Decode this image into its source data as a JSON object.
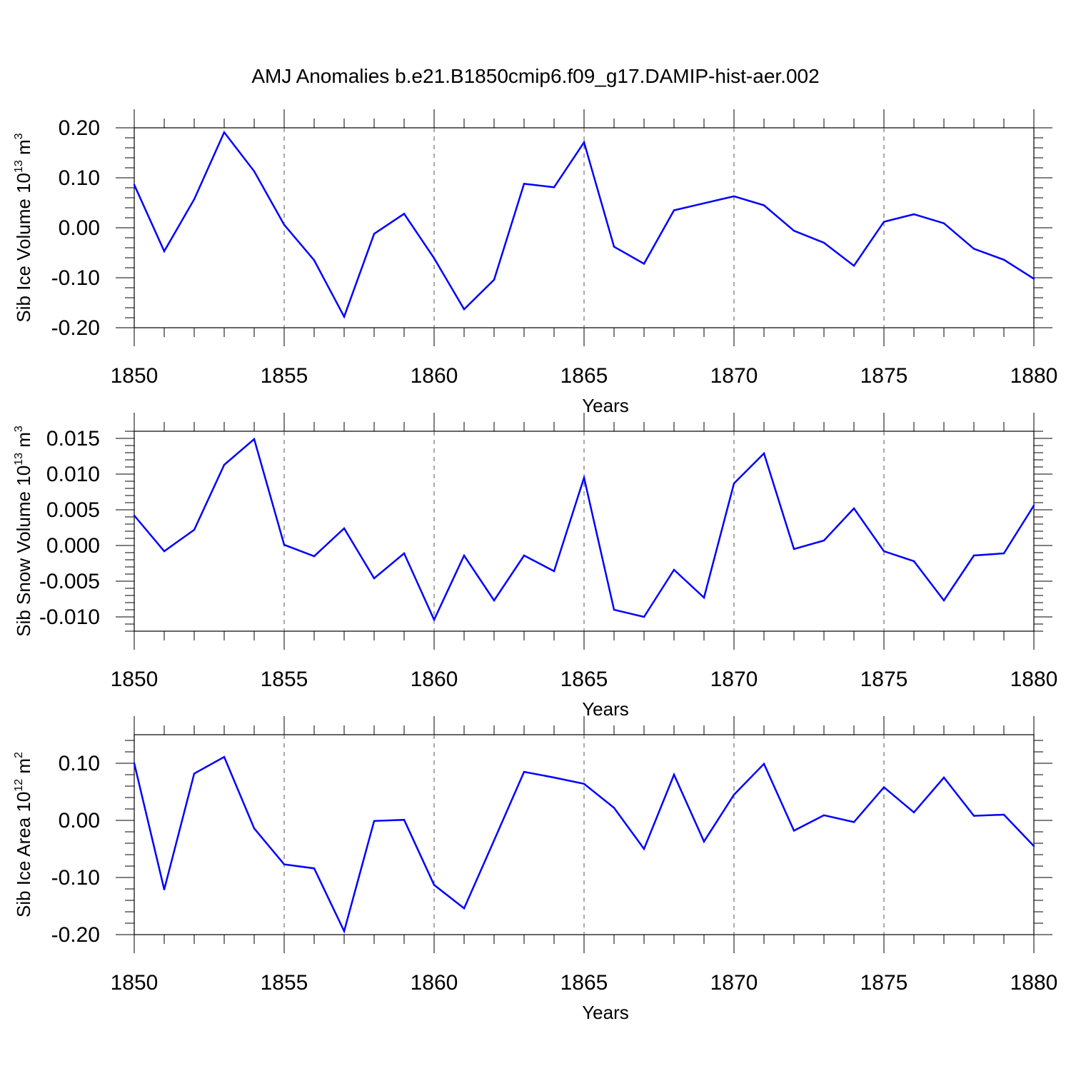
{
  "title": "AMJ Anomalies b.e21.B1850cmip6.f09_g17.DAMIP-hist-aer.002",
  "line_color": "#0000ff",
  "chart_data": [
    {
      "type": "line",
      "ylabel_main": "Sib Ice Volume 10",
      "ylabel_exp": "13",
      "ylabel_unit": " m",
      "ylabel_unit_exp": "3",
      "xlabel": "Years",
      "xlim": [
        1850,
        1880
      ],
      "ylim": [
        -0.2,
        0.2
      ],
      "yticks": [
        "0.20",
        "0.10",
        "0.00",
        "-0.10",
        "-0.20"
      ],
      "ytick_values": [
        0.2,
        0.1,
        0.0,
        -0.1,
        -0.2
      ],
      "xticks": [
        "1850",
        "1855",
        "1860",
        "1865",
        "1870",
        "1875",
        "1880"
      ],
      "x": [
        1850,
        1851,
        1852,
        1853,
        1854,
        1855,
        1856,
        1857,
        1858,
        1859,
        1860,
        1861,
        1862,
        1863,
        1864,
        1865,
        1866,
        1867,
        1868,
        1869,
        1870,
        1871,
        1872,
        1873,
        1874,
        1875,
        1876,
        1877,
        1878,
        1879,
        1880
      ],
      "values": [
        0.086,
        -0.047,
        0.057,
        0.191,
        0.113,
        0.006,
        -0.065,
        -0.178,
        -0.012,
        0.028,
        -0.061,
        -0.163,
        -0.104,
        0.088,
        0.081,
        0.171,
        -0.038,
        -0.072,
        0.035,
        0.049,
        0.063,
        0.045,
        -0.006,
        -0.03,
        -0.076,
        0.012,
        0.027,
        0.009,
        -0.042,
        -0.064,
        -0.102
      ]
    },
    {
      "type": "line",
      "ylabel_main": "Sib Snow Volume 10",
      "ylabel_exp": "13",
      "ylabel_unit": " m",
      "ylabel_unit_exp": "3",
      "xlabel": "Years",
      "xlim": [
        1850,
        1880
      ],
      "ylim": [
        -0.012,
        0.016
      ],
      "yticks": [
        "0.015",
        "0.010",
        "0.005",
        "0.000",
        "-0.005",
        "-0.010"
      ],
      "ytick_values": [
        0.015,
        0.01,
        0.005,
        0.0,
        -0.005,
        -0.01
      ],
      "xticks": [
        "1850",
        "1855",
        "1860",
        "1865",
        "1870",
        "1875",
        "1880"
      ],
      "x": [
        1850,
        1851,
        1852,
        1853,
        1854,
        1855,
        1856,
        1857,
        1858,
        1859,
        1860,
        1861,
        1862,
        1863,
        1864,
        1865,
        1866,
        1867,
        1868,
        1869,
        1870,
        1871,
        1872,
        1873,
        1874,
        1875,
        1876,
        1877,
        1878,
        1879,
        1880
      ],
      "values": [
        0.0042,
        -0.0008,
        0.0022,
        0.0113,
        0.0149,
        0.0001,
        -0.0015,
        0.0024,
        -0.0046,
        -0.0011,
        -0.0104,
        -0.0014,
        -0.0077,
        -0.0014,
        -0.0036,
        0.0095,
        -0.009,
        -0.01,
        -0.0034,
        -0.0073,
        0.0087,
        0.0129,
        -0.0005,
        0.0007,
        0.0052,
        -0.0008,
        -0.0022,
        -0.0077,
        -0.0014,
        -0.0011,
        0.0056
      ]
    },
    {
      "type": "line",
      "ylabel_main": "Sib Ice Area 10",
      "ylabel_exp": "12",
      "ylabel_unit": " m",
      "ylabel_unit_exp": "2",
      "xlabel": "Years",
      "xlim": [
        1850,
        1880
      ],
      "ylim": [
        -0.2,
        0.15
      ],
      "yticks": [
        "0.10",
        "0.00",
        "-0.10",
        "-0.20"
      ],
      "ytick_values": [
        0.1,
        0.0,
        -0.1,
        -0.2
      ],
      "xticks": [
        "1850",
        "1855",
        "1860",
        "1865",
        "1870",
        "1875",
        "1880"
      ],
      "x": [
        1850,
        1851,
        1852,
        1853,
        1854,
        1855,
        1856,
        1857,
        1858,
        1859,
        1860,
        1861,
        1862,
        1863,
        1864,
        1865,
        1866,
        1867,
        1868,
        1869,
        1870,
        1871,
        1872,
        1873,
        1874,
        1875,
        1876,
        1877,
        1878,
        1879,
        1880
      ],
      "values": [
        0.1,
        -0.121,
        0.082,
        0.111,
        -0.014,
        -0.077,
        -0.084,
        -0.194,
        -0.001,
        0.001,
        -0.113,
        -0.154,
        -0.035,
        0.085,
        0.075,
        0.064,
        0.022,
        -0.05,
        0.08,
        -0.037,
        0.045,
        0.099,
        -0.018,
        0.009,
        -0.003,
        0.058,
        0.014,
        0.075,
        0.008,
        0.01,
        -0.045
      ]
    }
  ]
}
